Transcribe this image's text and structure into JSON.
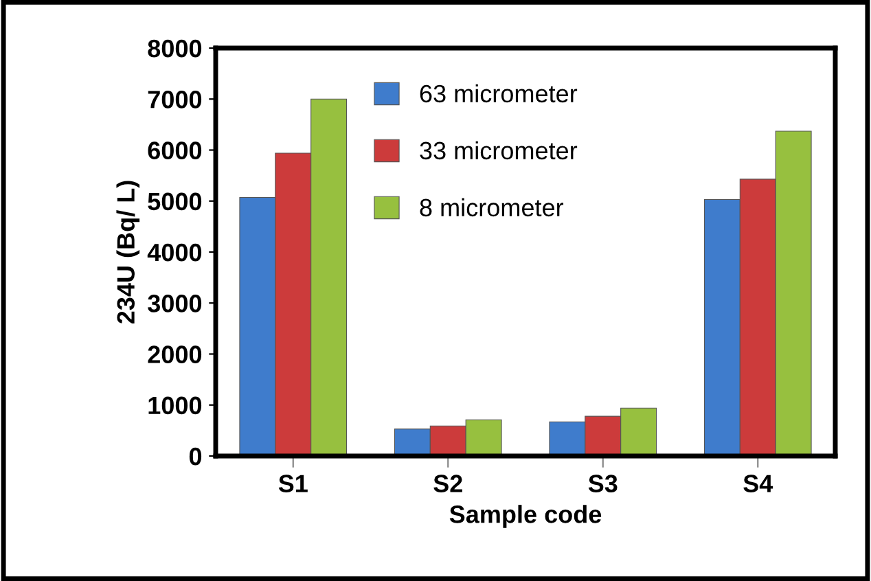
{
  "chart_data": {
    "type": "bar",
    "xlabel": "Sample code",
    "ylabel": "234U (Bq/ L)",
    "categories": [
      "S1",
      "S2",
      "S3",
      "S4"
    ],
    "series": [
      {
        "name": "63 micrometer",
        "color": "#3f7ccc",
        "values": [
          5070,
          530,
          670,
          5030
        ]
      },
      {
        "name": "33 micrometer",
        "color": "#cc3b3b",
        "values": [
          5940,
          590,
          780,
          5430
        ]
      },
      {
        "name": "8 micrometer",
        "color": "#97c03f",
        "values": [
          7000,
          710,
          940,
          6370
        ]
      }
    ],
    "ylim": [
      0,
      8000
    ],
    "yticks": [
      0,
      1000,
      2000,
      3000,
      4000,
      5000,
      6000,
      7000,
      8000
    ],
    "grid": false,
    "legend": "top"
  }
}
